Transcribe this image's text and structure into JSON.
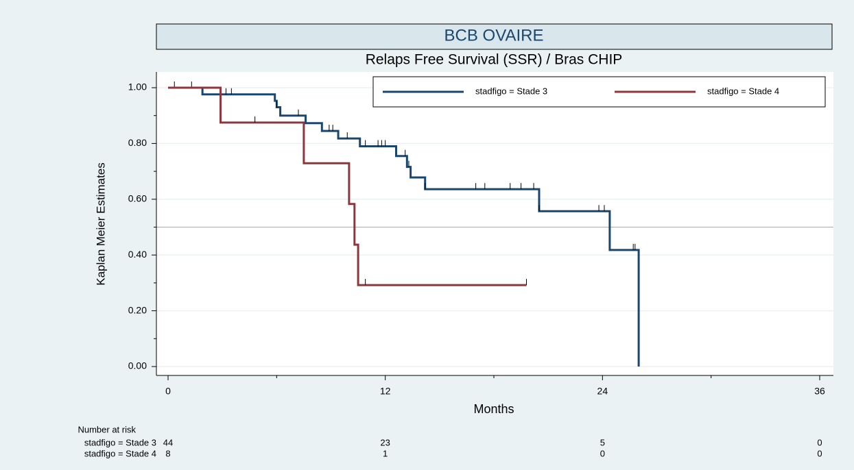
{
  "chart_data": {
    "type": "km-step",
    "title": "BCB OVAIRE",
    "subtitle": "Relaps Free Survival (SSR) / Bras CHIP",
    "x_label": "Months",
    "y_label": "Kaplan Meier Estimates",
    "xlim": [
      0,
      36
    ],
    "ylim": [
      0,
      1
    ],
    "xticks": [
      0,
      12,
      24,
      36
    ],
    "x_minor_ticks": [
      6,
      18,
      30
    ],
    "yticks": [
      {
        "value": 0,
        "label": "0.00"
      },
      {
        "value": 0.2,
        "label": "0.20"
      },
      {
        "value": 0.4,
        "label": "0.40"
      },
      {
        "value": 0.6,
        "label": "0.60"
      },
      {
        "value": 0.8,
        "label": "0.80"
      },
      {
        "value": 1,
        "label": "1.00"
      }
    ],
    "y_minor_ticks": [
      0.1,
      0.3,
      0.5,
      0.7,
      0.9
    ],
    "grid": true,
    "reference_line": 0.5,
    "legend_position": "top-right",
    "series": [
      {
        "name": "stadfigo = Stade 3",
        "color": "#1a476f",
        "x": [
          0,
          1.9,
          5.9,
          6.0,
          6.2,
          7.6,
          8.5,
          9.4,
          10.6,
          12.6,
          13.2,
          13.4,
          14.2,
          20.5,
          24.4,
          26.0
        ],
        "values": [
          1,
          0.976,
          0.953,
          0.93,
          0.9,
          0.873,
          0.845,
          0.818,
          0.79,
          0.755,
          0.716,
          0.678,
          0.636,
          0.557,
          0.418,
          0
        ],
        "censored": [
          0.35,
          1.3,
          3.2,
          3.5,
          6.0,
          7.2,
          8.9,
          9.1,
          9.9,
          10.9,
          11.6,
          11.8,
          12.0,
          13.1,
          13.3,
          14.2,
          17.0,
          17.5,
          18.9,
          19.5,
          20.2,
          20.5,
          23.8,
          24.1,
          25.7,
          25.8
        ]
      },
      {
        "name": "stadfigo = Stade 4",
        "color": "#90353b",
        "x": [
          0,
          2.9,
          7.5,
          10.0,
          10.3,
          10.5,
          19.8
        ],
        "values": [
          1,
          0.875,
          0.729,
          0.583,
          0.437,
          0.292,
          0.292
        ],
        "censored": [
          4.8,
          10.9,
          19.8
        ]
      }
    ],
    "risk_table": {
      "title": "Number at risk",
      "rows": [
        {
          "name": "stadfigo = Stade 3",
          "values": [
            44,
            23,
            5,
            0
          ]
        },
        {
          "name": "stadfigo = Stade 4",
          "values": [
            8,
            1,
            0,
            0
          ]
        }
      ]
    }
  }
}
